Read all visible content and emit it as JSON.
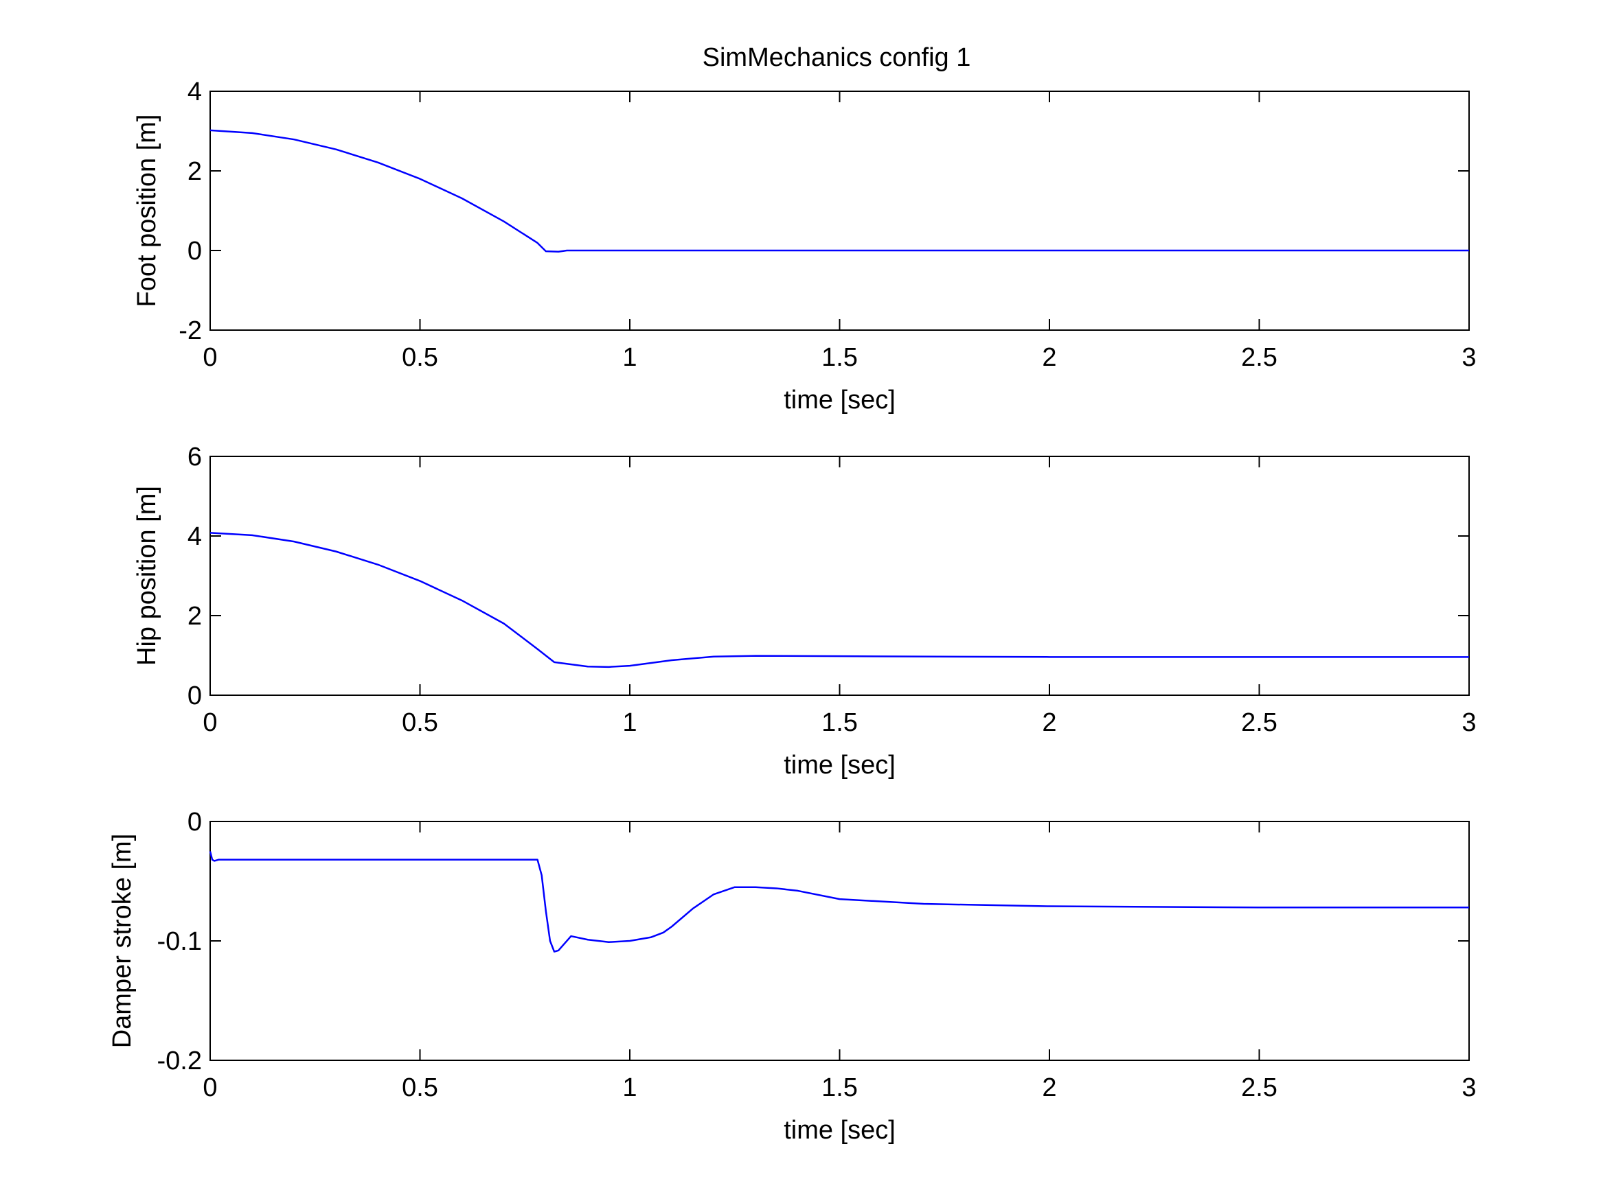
{
  "figure_title": "SimMechanics config 1",
  "chart_data": [
    {
      "type": "line",
      "ylabel": "Foot position [m]",
      "xlabel": "time [sec]",
      "xlim": [
        0,
        3
      ],
      "ylim": [
        -2,
        4
      ],
      "xticks": [
        0,
        0.5,
        1,
        1.5,
        2,
        2.5,
        3
      ],
      "xtick_labels": [
        "0",
        "0.5",
        "1",
        "1.5",
        "2",
        "2.5",
        "3"
      ],
      "yticks": [
        -2,
        0,
        2,
        4
      ],
      "ytick_labels": [
        "-2",
        "0",
        "2",
        "4"
      ],
      "grid": false,
      "series": [
        {
          "color": "#0000ff",
          "x": [
            0,
            0.1,
            0.2,
            0.3,
            0.4,
            0.5,
            0.6,
            0.7,
            0.78,
            0.8,
            0.83,
            0.85,
            1.0,
            1.5,
            2.0,
            2.5,
            3.0
          ],
          "y": [
            3.02,
            2.95,
            2.79,
            2.54,
            2.21,
            1.8,
            1.31,
            0.73,
            0.19,
            -0.02,
            -0.03,
            0.0,
            0.0,
            0.0,
            0.0,
            0.0,
            0.0
          ]
        }
      ]
    },
    {
      "type": "line",
      "ylabel": "Hip position [m]",
      "xlabel": "time [sec]",
      "xlim": [
        0,
        3
      ],
      "ylim": [
        0,
        6
      ],
      "xticks": [
        0,
        0.5,
        1,
        1.5,
        2,
        2.5,
        3
      ],
      "xtick_labels": [
        "0",
        "0.5",
        "1",
        "1.5",
        "2",
        "2.5",
        "3"
      ],
      "yticks": [
        0,
        2,
        4,
        6
      ],
      "ytick_labels": [
        "0",
        "2",
        "4",
        "6"
      ],
      "grid": false,
      "series": [
        {
          "color": "#0000ff",
          "x": [
            0,
            0.1,
            0.2,
            0.3,
            0.4,
            0.5,
            0.6,
            0.7,
            0.78,
            0.82,
            0.9,
            0.95,
            1.0,
            1.1,
            1.2,
            1.3,
            1.5,
            2.0,
            2.5,
            3.0
          ],
          "y": [
            4.08,
            4.02,
            3.86,
            3.61,
            3.28,
            2.87,
            2.38,
            1.8,
            1.16,
            0.83,
            0.72,
            0.71,
            0.74,
            0.88,
            0.97,
            0.99,
            0.98,
            0.96,
            0.96,
            0.96
          ]
        }
      ]
    },
    {
      "type": "line",
      "ylabel": "Damper stroke [m]",
      "xlabel": "time [sec]",
      "xlim": [
        0,
        3
      ],
      "ylim": [
        -0.2,
        0
      ],
      "xticks": [
        0,
        0.5,
        1,
        1.5,
        2,
        2.5,
        3
      ],
      "xtick_labels": [
        "0",
        "0.5",
        "1",
        "1.5",
        "2",
        "2.5",
        "3"
      ],
      "yticks": [
        -0.2,
        -0.1,
        0
      ],
      "ytick_labels": [
        "-0.2",
        "-0.1",
        "0"
      ],
      "grid": false,
      "series": [
        {
          "color": "#0000ff",
          "x": [
            0,
            0.005,
            0.01,
            0.02,
            0.1,
            0.5,
            0.78,
            0.79,
            0.8,
            0.81,
            0.82,
            0.83,
            0.84,
            0.86,
            0.9,
            0.95,
            1.0,
            1.05,
            1.08,
            1.1,
            1.15,
            1.2,
            1.25,
            1.3,
            1.35,
            1.4,
            1.5,
            1.7,
            2.0,
            2.5,
            3.0
          ],
          "y": [
            -0.025,
            -0.032,
            -0.033,
            -0.032,
            -0.032,
            -0.032,
            -0.032,
            -0.045,
            -0.075,
            -0.1,
            -0.109,
            -0.108,
            -0.104,
            -0.096,
            -0.099,
            -0.101,
            -0.1,
            -0.097,
            -0.093,
            -0.088,
            -0.073,
            -0.061,
            -0.055,
            -0.055,
            -0.056,
            -0.058,
            -0.065,
            -0.069,
            -0.071,
            -0.072,
            -0.072
          ]
        }
      ]
    }
  ]
}
